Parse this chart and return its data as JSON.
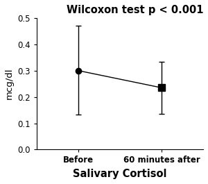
{
  "title": "Wilcoxon test p < 0.001",
  "xlabel": "Salivary Cortisol",
  "ylabel": "mcg/dl",
  "x_labels": [
    "Before",
    "60 minutes after"
  ],
  "x_positions": [
    0,
    1
  ],
  "means": [
    0.3,
    0.235
  ],
  "error_upper": [
    0.17,
    0.098
  ],
  "error_lower": [
    0.168,
    0.098
  ],
  "ylim": [
    0.0,
    0.5
  ],
  "yticks": [
    0.0,
    0.1,
    0.2,
    0.3,
    0.4,
    0.5
  ],
  "marker_color": "#000000",
  "line_color": "#000000",
  "title_fontsize": 10.5,
  "label_fontsize": 9.5,
  "tick_fontsize": 8.5,
  "marker_size_circle": 6,
  "marker_size_square": 7,
  "background_color": "#ffffff"
}
